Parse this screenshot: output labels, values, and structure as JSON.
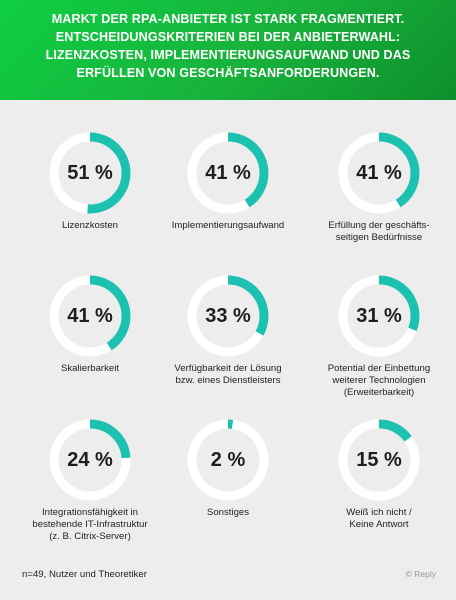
{
  "header": {
    "title": "MARKT DER RPA-ANBIETER IST STARK FRAGMENTIERT. ENTSCHEIDUNGSKRITERIEN BEI DER ANBIETERWAHL: LIZENZKOSTEN, IMPLEMENTIERUNGSAUFWAND UND DAS ERFÜLLEN VON GESCHÄFTSANFORDERUNGEN."
  },
  "colors": {
    "ring_fill": "#1cc1b0",
    "ring_track": "#ffffff",
    "header_green": "#14b93c"
  },
  "footer": {
    "note": "n=49, Nutzer und Theoretiker",
    "credit": "© Reply"
  },
  "chart_data": {
    "type": "donut",
    "unit": "%",
    "items": [
      {
        "label_lines": [
          "Lizenzkosten"
        ],
        "value": 51,
        "display": "51 %"
      },
      {
        "label_lines": [
          "Implementierungsaufwand"
        ],
        "value": 41,
        "display": "41 %"
      },
      {
        "label_lines": [
          "Erfüllung der geschäfts-",
          "seitigen Bedürfnisse"
        ],
        "value": 41,
        "display": "41 %"
      },
      {
        "label_lines": [
          "Skalierbarkeit"
        ],
        "value": 41,
        "display": "41 %"
      },
      {
        "label_lines": [
          "Verfügbarkeit der Lösung",
          "bzw. eines Dienstleisters"
        ],
        "value": 33,
        "display": "33 %"
      },
      {
        "label_lines": [
          "Potential der Einbettung",
          "weiterer Technologien",
          "(Erweiterbarkeit)"
        ],
        "value": 31,
        "display": "31 %"
      },
      {
        "label_lines": [
          "Integrationsfähigkeit in",
          "bestehende IT-Infrastruktur",
          "(z. B. Citrix-Server)"
        ],
        "value": 24,
        "display": "24 %"
      },
      {
        "label_lines": [
          "Sonstiges"
        ],
        "value": 2,
        "display": "2 %"
      },
      {
        "label_lines": [
          "Weiß ich nicht /",
          "Keine Antwort"
        ],
        "value": 15,
        "display": "15 %"
      }
    ]
  }
}
